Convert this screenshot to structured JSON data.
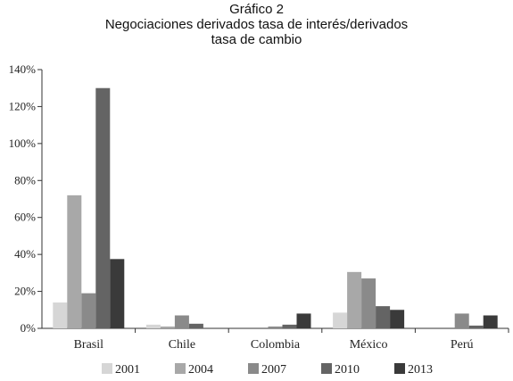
{
  "chart_data": {
    "type": "bar",
    "title": "Gráfico 2",
    "subtitle_lines": [
      "Negociaciones derivados tasa de interés/derivados",
      "tasa de cambio"
    ],
    "categories": [
      "Brasil",
      "Chile",
      "Colombia",
      "México",
      "Perú"
    ],
    "series": [
      {
        "name": "2001",
        "color": "#d6d6d6",
        "values": [
          14,
          2,
          0,
          8.5,
          0
        ]
      },
      {
        "name": "2004",
        "color": "#a8a8a8",
        "values": [
          72,
          1,
          0,
          30.5,
          0
        ]
      },
      {
        "name": "2007",
        "color": "#8a8a8a",
        "values": [
          19,
          7,
          1,
          27,
          8
        ]
      },
      {
        "name": "2010",
        "color": "#646464",
        "values": [
          130,
          2.5,
          2,
          12,
          1.5
        ]
      },
      {
        "name": "2013",
        "color": "#3a3a3a",
        "values": [
          37.5,
          0,
          8,
          10,
          7
        ]
      }
    ],
    "ylim": [
      0,
      140
    ],
    "yticks": [
      0,
      20,
      40,
      60,
      80,
      100,
      120,
      140
    ],
    "ytick_labels": [
      "0%",
      "20%",
      "40%",
      "60%",
      "80%",
      "100%",
      "120%",
      "140%"
    ],
    "xlabel": "",
    "ylabel": "",
    "grid": false,
    "legend_position": "bottom"
  }
}
